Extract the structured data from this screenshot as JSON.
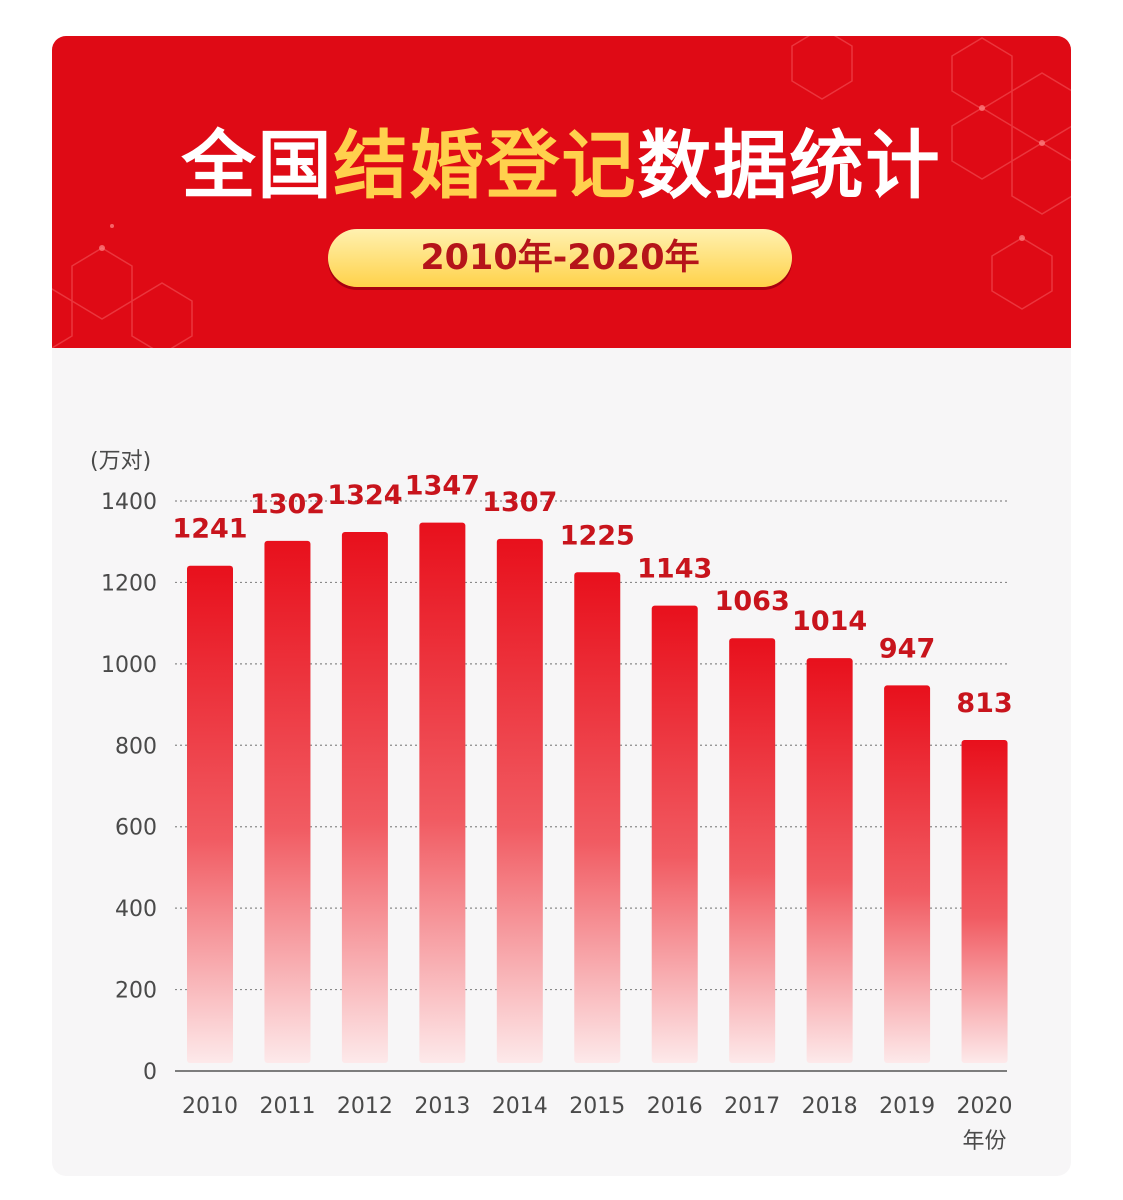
{
  "header": {
    "title_part1": "全国",
    "title_part2": "结婚登记",
    "title_part3": "数据统计",
    "subtitle": "2010年-2020年"
  },
  "colors": {
    "banner": "#df0a15",
    "title_white": "#ffffff",
    "title_yellow": "#ffd04d",
    "bar_top": "#e8101c",
    "label": "#c8141c"
  },
  "chart_data": {
    "type": "bar",
    "title": "",
    "ylabel": "(万对)",
    "xlabel": "年份",
    "categories": [
      "2010",
      "2011",
      "2012",
      "2013",
      "2014",
      "2015",
      "2016",
      "2017",
      "2018",
      "2019",
      "2020"
    ],
    "values": [
      1241,
      1302,
      1324,
      1347,
      1307,
      1225,
      1143,
      1063,
      1014,
      947,
      813
    ],
    "ylim": [
      0,
      1400
    ],
    "yticks": [
      0,
      200,
      400,
      600,
      800,
      1000,
      1200,
      1400
    ],
    "grid": true,
    "data_labels": true
  }
}
